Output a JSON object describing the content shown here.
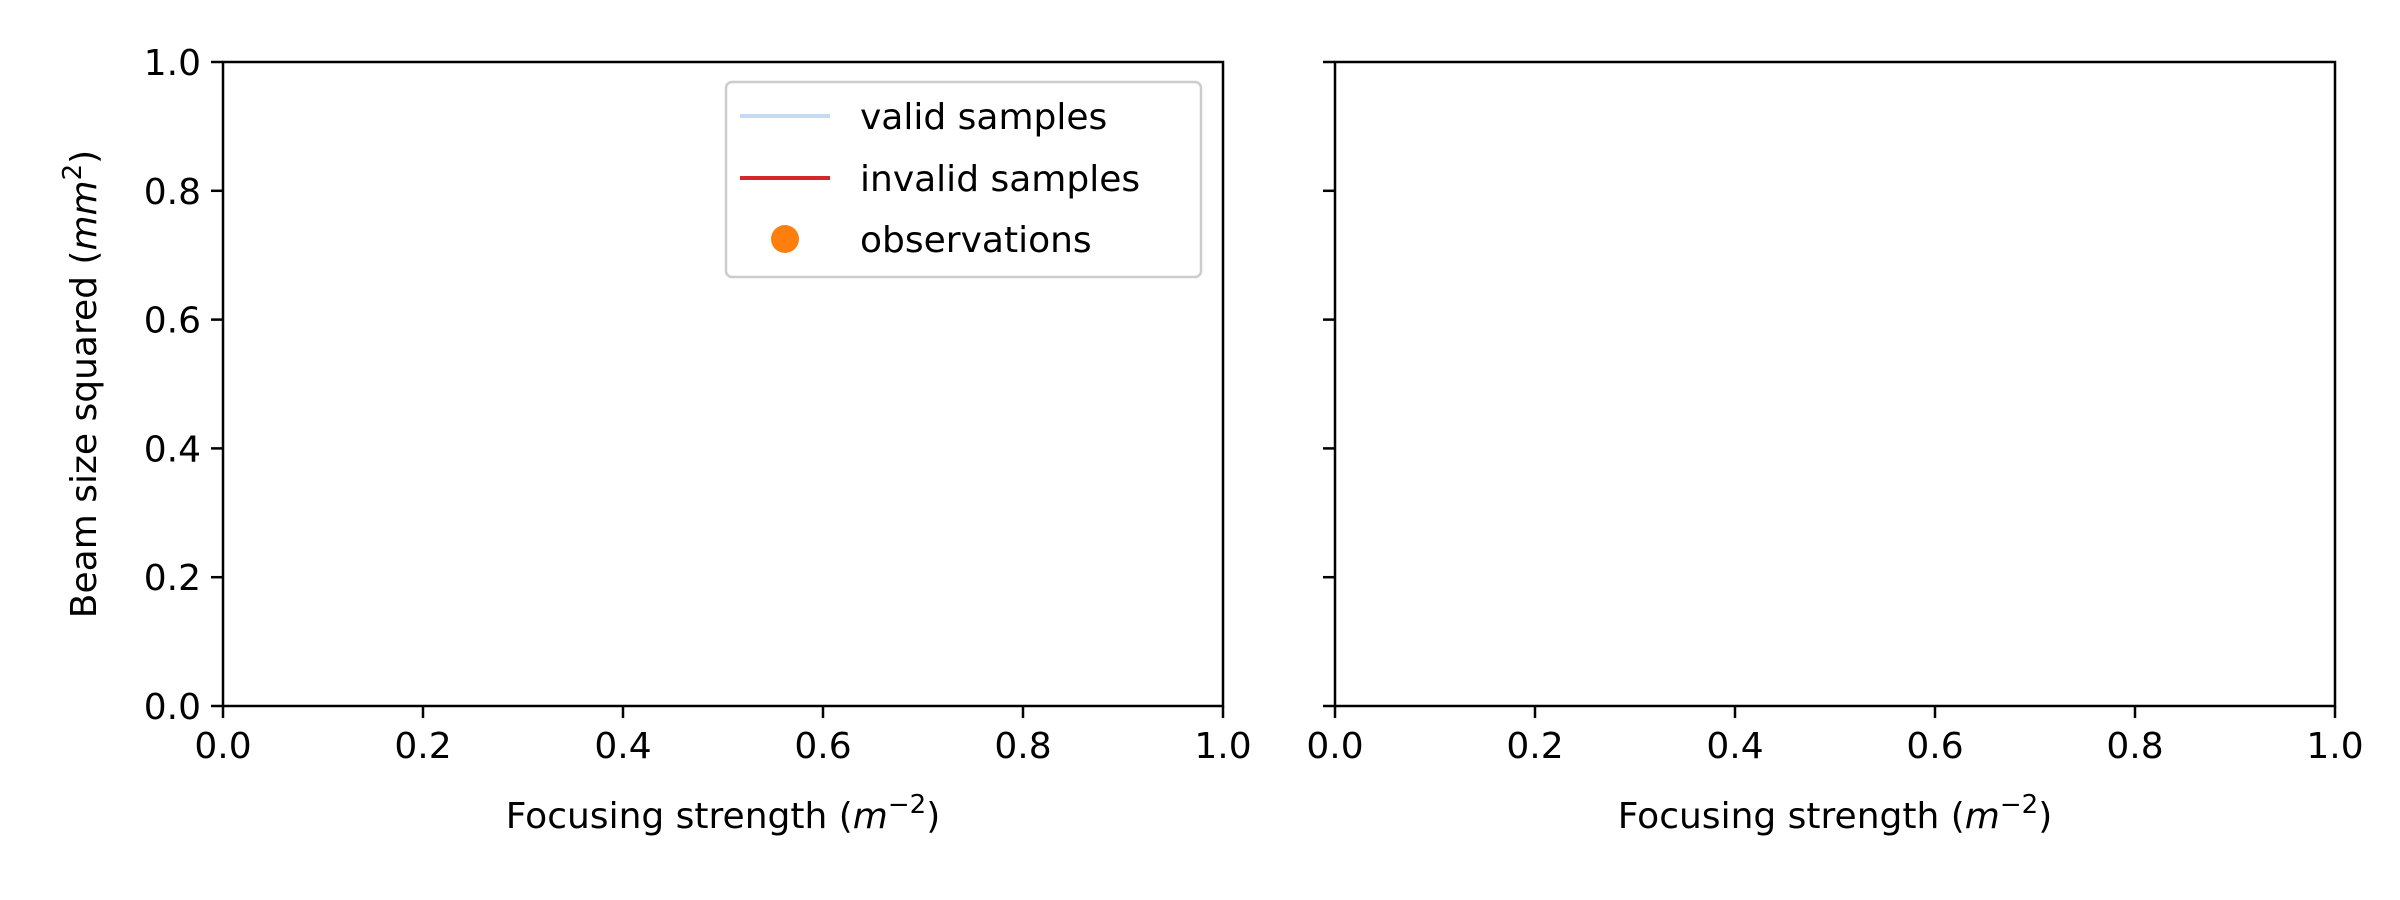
{
  "chart_data": [
    {
      "type": "line",
      "xlabel": "Focusing strength (m^-2)",
      "xlabel_parts": {
        "text": "Focusing strength (",
        "var": "m",
        "sup": "−2",
        "close": ")"
      },
      "ylabel": "Beam size squared (mm^2)",
      "ylabel_parts": {
        "text": "Beam size squared (",
        "var": "mm",
        "sup": "2",
        "close": ")"
      },
      "xlim": [
        0.0,
        1.0
      ],
      "ylim": [
        0.0,
        1.0
      ],
      "xticks": [
        "0.0",
        "0.2",
        "0.4",
        "0.6",
        "0.8",
        "1.0"
      ],
      "yticks": [
        "0.0",
        "0.2",
        "0.4",
        "0.6",
        "0.8",
        "1.0"
      ],
      "grid": false,
      "legend_position": "top-right",
      "legend": [
        {
          "label": "valid samples",
          "marker": "line",
          "color": "#c6dbef"
        },
        {
          "label": "invalid samples",
          "marker": "line",
          "color": "#d62728"
        },
        {
          "label": "observations",
          "marker": "dot",
          "color": "#ff7f0e"
        }
      ],
      "series": []
    },
    {
      "type": "line",
      "xlabel": "Focusing strength (m^-2)",
      "xlabel_parts": {
        "text": "Focusing strength (",
        "var": "m",
        "sup": "−2",
        "close": ")"
      },
      "xlim": [
        0.0,
        1.0
      ],
      "ylim": [
        0.0,
        1.0
      ],
      "xticks": [
        "0.0",
        "0.2",
        "0.4",
        "0.6",
        "0.8",
        "1.0"
      ],
      "y_tick_labels_shown": false,
      "grid": false,
      "series": []
    }
  ]
}
